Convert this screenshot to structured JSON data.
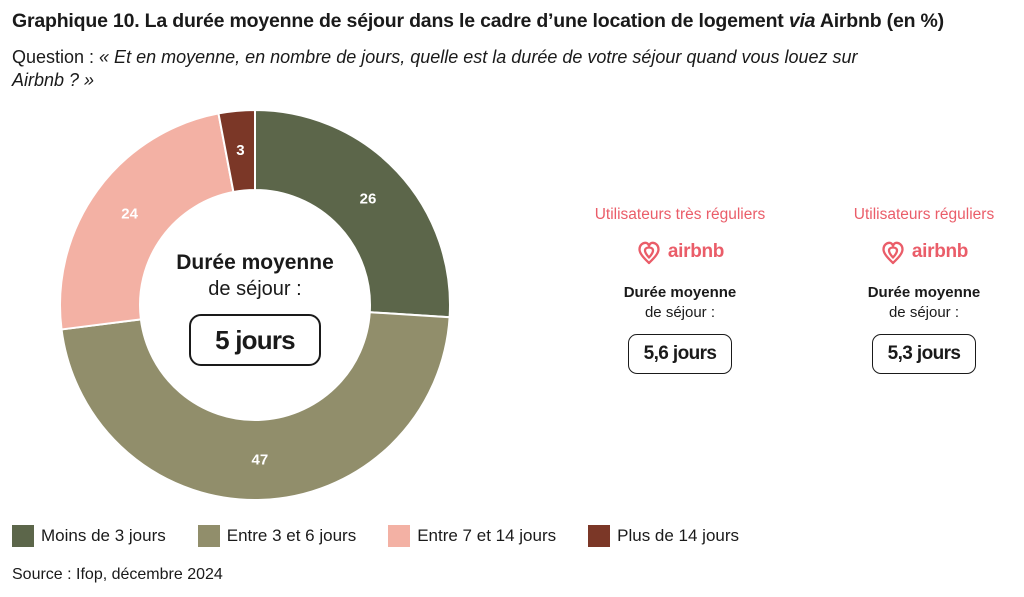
{
  "header": {
    "title_main": "Graphique 10. La durée moyenne de séjour dans le cadre d’une location de logement ",
    "title_via": "via",
    "title_end": " Airbnb (en %)",
    "question_label": "Question : ",
    "question_text": "« Et en moyenne, en nombre de jours, quelle est la durée de votre séjour quand vous louez sur Airbnb ? »"
  },
  "chart_data": {
    "type": "pie",
    "variant": "donut",
    "categories": [
      "Moins de 3 jours",
      "Entre 3 et 6 jours",
      "Entre 7 et 14 jours",
      "Plus de 14 jours"
    ],
    "values": [
      26,
      47,
      24,
      3
    ],
    "colors": [
      "#5c664a",
      "#918e6b",
      "#f3b1a4",
      "#7b3727"
    ],
    "label_colors": [
      "#ffffff",
      "#ffffff",
      "#ffffff",
      "#ffffff"
    ],
    "legend_position": "bottom",
    "center": {
      "line1": "Durée moyenne",
      "line2": "de séjour :",
      "value": "5 jours"
    }
  },
  "side_panels": [
    {
      "title": "Utilisateurs très réguliers",
      "brand": "airbnb",
      "line1": "Durée moyenne",
      "line2": "de séjour :",
      "value": "5,6 jours"
    },
    {
      "title": "Utilisateurs réguliers",
      "brand": "airbnb",
      "line1": "Durée moyenne",
      "line2": "de séjour :",
      "value": "5,3 jours"
    }
  ],
  "colors": {
    "accent": "#ea5d69",
    "text": "#1a1a1a"
  },
  "icons": {
    "brand_logo": "airbnb-logo-icon"
  },
  "footer": {
    "source": "Source : Ifop, décembre 2024"
  }
}
